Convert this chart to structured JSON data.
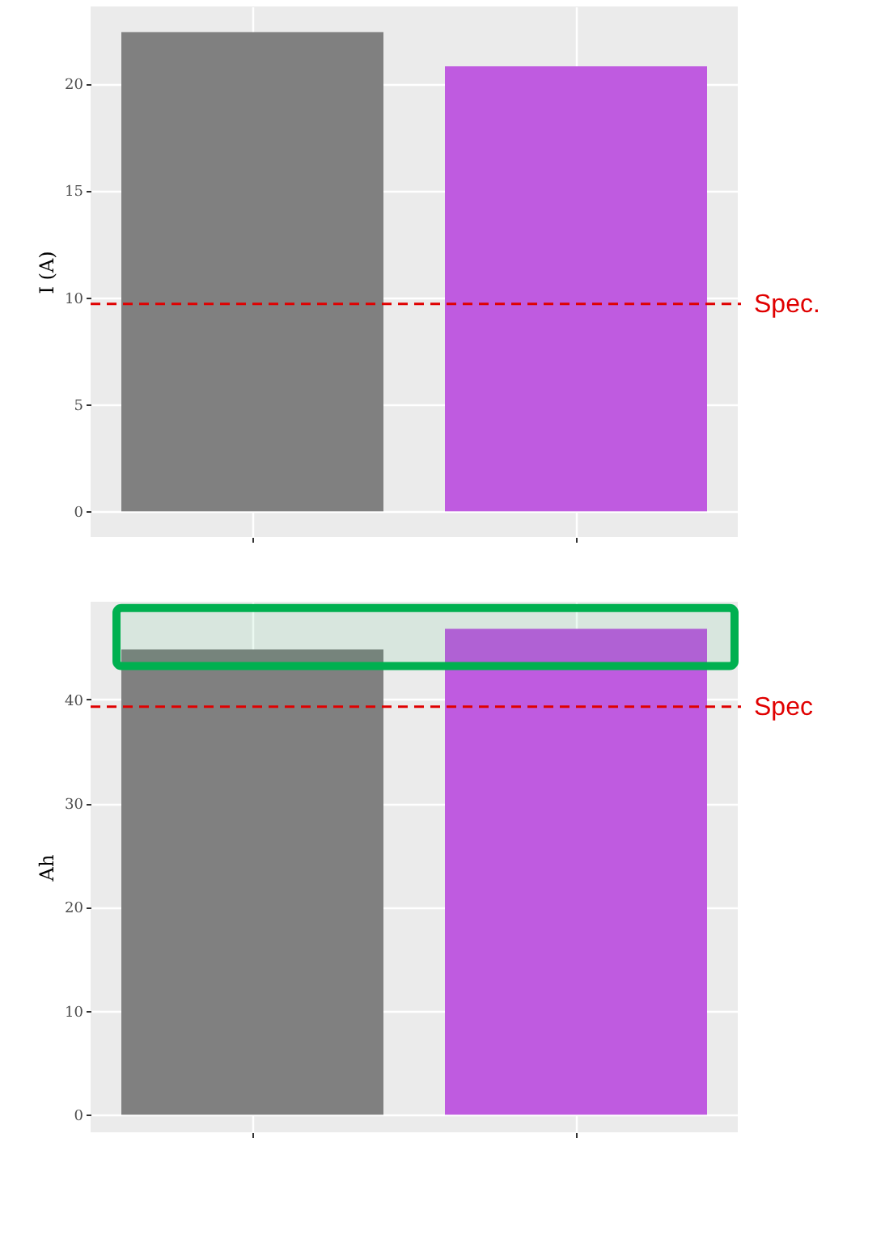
{
  "chart_data": [
    {
      "type": "bar",
      "ylabel": "I (A)",
      "categories": [
        null,
        null
      ],
      "values": [
        22.4,
        20.8
      ],
      "colors": [
        "#808080",
        "#bf5be0"
      ],
      "ylim": [
        -1.2,
        23.6
      ],
      "yticks": [
        0,
        5,
        10,
        15,
        20
      ],
      "grid": true,
      "tick_labels": "y",
      "ref_lines": [
        {
          "axis": "y",
          "value": 9.7,
          "label": "Spec.",
          "color": "#e00000",
          "line_style": "dashed"
        }
      ]
    },
    {
      "type": "bar",
      "ylabel": "Ah",
      "categories": [
        null,
        null
      ],
      "values": [
        44.8,
        46.8
      ],
      "colors": [
        "#808080",
        "#bf5be0"
      ],
      "ylim": [
        -1.7,
        49.4
      ],
      "yticks": [
        0,
        10,
        20,
        30,
        40
      ],
      "grid": true,
      "tick_labels": "y",
      "ref_lines": [
        {
          "axis": "y",
          "value": 39.3,
          "label": "Spec",
          "color": "#e00000",
          "line_style": "dashed"
        }
      ],
      "bands": [
        {
          "axis": "y",
          "from": 43.2,
          "to": 48.8,
          "color": "#00b050"
        }
      ]
    }
  ]
}
